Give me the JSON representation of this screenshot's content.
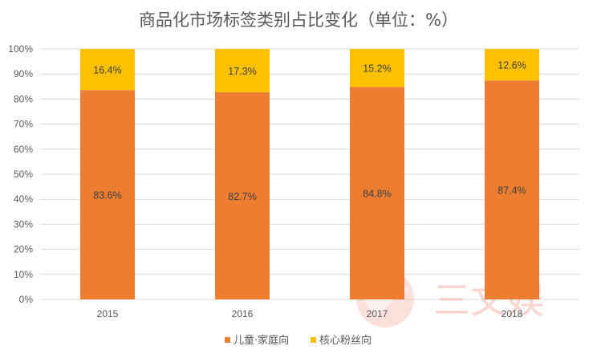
{
  "chart_data": {
    "type": "bar",
    "stacked": true,
    "title": "商品化市场标签类别占比变化（单位：%）",
    "categories": [
      "2015",
      "2016",
      "2017",
      "2018"
    ],
    "series": [
      {
        "name": "儿童·家庭向",
        "values": [
          83.6,
          82.7,
          84.8,
          87.4
        ],
        "labels": [
          "83.6%",
          "82.7%",
          "84.8%",
          "87.4%"
        ],
        "color": "#ED7D31"
      },
      {
        "name": "核心粉丝向",
        "values": [
          16.4,
          17.3,
          15.2,
          12.6
        ],
        "labels": [
          "16.4%",
          "17.3%",
          "15.2%",
          "12.6%"
        ],
        "color": "#FFC000"
      }
    ],
    "yticks": [
      "0%",
      "10%",
      "20%",
      "30%",
      "40%",
      "50%",
      "60%",
      "70%",
      "80%",
      "90%",
      "100%"
    ],
    "ylim": [
      0,
      100
    ],
    "grid": true,
    "legend": "bottom",
    "xlabel": "",
    "ylabel": ""
  },
  "watermark": {
    "text": "三文娱",
    "color": "#F3B3A8"
  }
}
